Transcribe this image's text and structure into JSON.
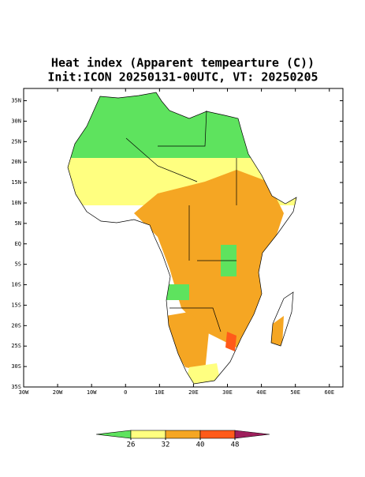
{
  "title": [
    "Heat index (Apparent tempearture (C))",
    "Init:ICON 20250131-00UTC, VT: 20250205"
  ],
  "map": {
    "lonlim": [
      -30,
      64
    ],
    "latlim": [
      -35,
      38
    ],
    "lat_ticks": [
      {
        "value": 35,
        "label": "35N"
      },
      {
        "value": 30,
        "label": "30N"
      },
      {
        "value": 25,
        "label": "25N"
      },
      {
        "value": 20,
        "label": "20N"
      },
      {
        "value": 15,
        "label": "15N"
      },
      {
        "value": 10,
        "label": "10N"
      },
      {
        "value": 5,
        "label": "5N"
      },
      {
        "value": 0,
        "label": "EQ"
      },
      {
        "value": -5,
        "label": "5S"
      },
      {
        "value": -10,
        "label": "10S"
      },
      {
        "value": -15,
        "label": "15S"
      },
      {
        "value": -20,
        "label": "20S"
      },
      {
        "value": -25,
        "label": "25S"
      },
      {
        "value": -30,
        "label": "30S"
      },
      {
        "value": -35,
        "label": "35S"
      }
    ],
    "lon_ticks": [
      {
        "value": -30,
        "label": "30W"
      },
      {
        "value": -20,
        "label": "20W"
      },
      {
        "value": -10,
        "label": "10W"
      },
      {
        "value": 0,
        "label": "0"
      },
      {
        "value": 10,
        "label": "10E"
      },
      {
        "value": 20,
        "label": "20E"
      },
      {
        "value": 30,
        "label": "30E"
      },
      {
        "value": 40,
        "label": "40E"
      },
      {
        "value": 50,
        "label": "50E"
      },
      {
        "value": 60,
        "label": "60E"
      }
    ]
  },
  "colorbar": {
    "ticks": [
      26,
      32,
      40,
      48
    ],
    "colors": [
      "#5ee35e",
      "#ffff80",
      "#f5a623",
      "#ff5a1a",
      "#9e1f5c"
    ]
  }
}
